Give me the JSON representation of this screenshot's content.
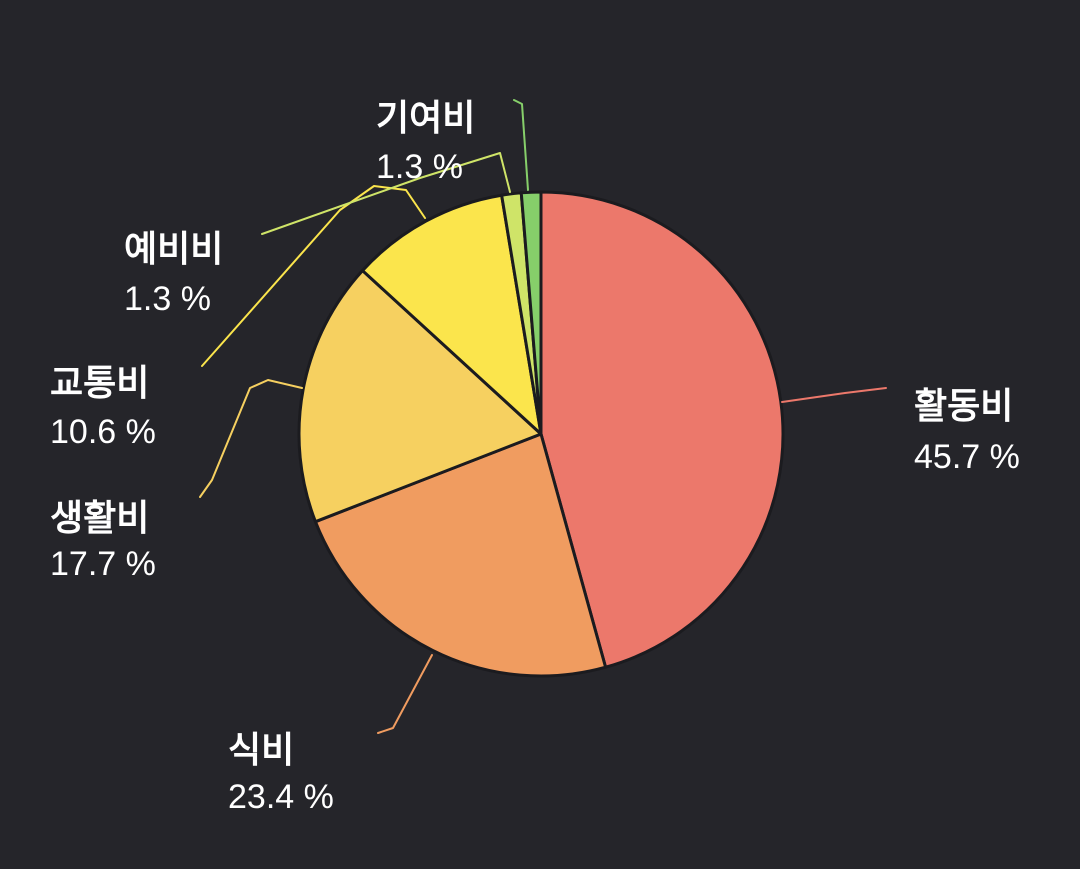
{
  "chart_data": {
    "type": "pie",
    "slices": [
      {
        "label": "활동비",
        "value": 45.7,
        "display": "45.7 %",
        "color": "#ec786b"
      },
      {
        "label": "식비",
        "value": 23.4,
        "display": "23.4 %",
        "color": "#f09c60"
      },
      {
        "label": "생활비",
        "value": 17.7,
        "display": "17.7 %",
        "color": "#f6d060"
      },
      {
        "label": "교통비",
        "value": 10.6,
        "display": "10.6 %",
        "color": "#fbe54c"
      },
      {
        "label": "예비비",
        "value": 1.3,
        "display": "1.3 %",
        "color": "#cfe468"
      },
      {
        "label": "기여비",
        "value": 1.3,
        "display": "1.3 %",
        "color": "#86cf6a"
      }
    ],
    "background": "#25252a",
    "slice_border_color": "#25252a",
    "direction": "clockwise",
    "start_angle": "12 o'clock",
    "legend": "none",
    "labels": "outside with leader lines"
  }
}
